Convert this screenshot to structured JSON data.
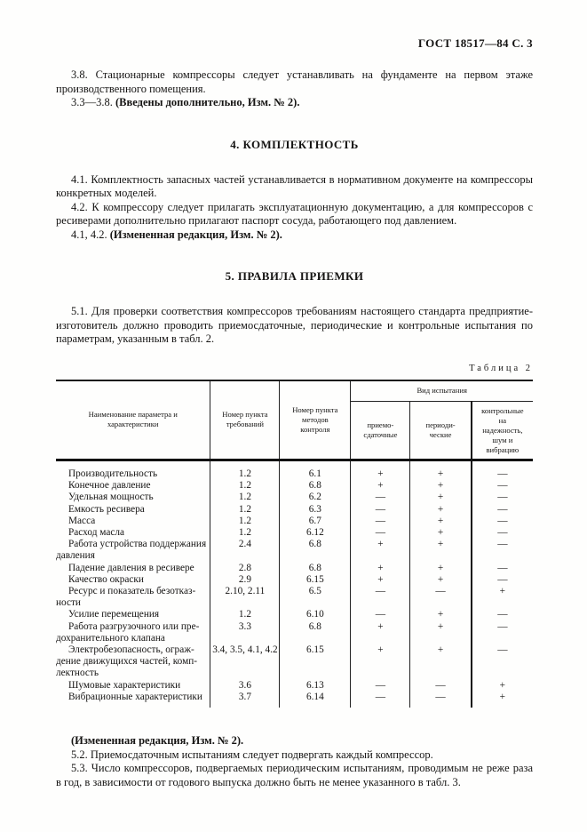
{
  "page": {
    "header_right": "ГОСТ 18517—84 С. 3"
  },
  "sections": {
    "p38": "3.8. Стационарные компрессоры следует устанавливать на фундаменте на первом этаже производственного помещения.",
    "p38_amend_num": "3.3—3.8.",
    "p38_amend_bold": "(Введены дополнительно, Изм. № 2).",
    "h4": "4. КОМПЛЕКТНОСТЬ",
    "p41": "4.1. Комплектность запасных частей устанавливается в нормативном документе на компрессоры конкретных моделей.",
    "p42": "4.2. К компрессору следует прилагать эксплуатационную документацию, а для компрессоров с ресиверами дополнительно прилагают паспорт сосуда, работающего под давлением.",
    "p42_amend_num": "4.1, 4.2.",
    "p42_amend_bold": "(Измененная редакция, Изм. № 2).",
    "h5": "5. ПРАВИЛА ПРИЕМКИ",
    "p51": "5.1. Для проверки соответствия компрессоров требованиям настоящего стандарта предприятие-изготовитель должно проводить приемосдаточные, периодические и контрольные испытания по параметрам, указанным в табл. 2.",
    "after_table_amend": "(Измененная редакция, Изм. № 2).",
    "p52": "5.2. Приемосдаточным испытаниям следует подвергать каждый компрессор.",
    "p53": "5.3. Число компрессоров, подвергаемых периодическим испытаниям, проводимым не реже раза в год, в зависимости от годового выпуска должно быть не менее указанного в табл. 3."
  },
  "table": {
    "caption": "Таблица 2",
    "headers": {
      "name": "Наименование параметра и\nхарактеристики",
      "req": "Номер пункта\nтребований",
      "method": "Номер пункта\nметодов\nконтроля",
      "test_type": "Вид испытания",
      "accept": "приемо-\nсдаточные",
      "periodic": "периоди-\nческие",
      "control": "контрольные\nна\nнадежность,\nшум и\nвибрацию"
    },
    "rows": [
      {
        "name": "Производительность",
        "req": "1.2",
        "method": "6.1",
        "accept": "+",
        "periodic": "+",
        "control": "—"
      },
      {
        "name": "Конечное давление",
        "req": "1.2",
        "method": "6.8",
        "accept": "+",
        "periodic": "+",
        "control": "—"
      },
      {
        "name": "Удельная мощность",
        "req": "1.2",
        "method": "6.2",
        "accept": "—",
        "periodic": "+",
        "control": "—"
      },
      {
        "name": "Емкость ресивера",
        "req": "1.2",
        "method": "6.3",
        "accept": "—",
        "periodic": "+",
        "control": "—"
      },
      {
        "name": "Масса",
        "req": "1.2",
        "method": "6.7",
        "accept": "—",
        "periodic": "+",
        "control": "—"
      },
      {
        "name": "Расход масла",
        "req": "1.2",
        "method": "6.12",
        "accept": "—",
        "periodic": "+",
        "control": "—"
      },
      {
        "name": "Работа устройства поддержания\nдавления",
        "req": "2.4",
        "method": "6.8",
        "accept": "+",
        "periodic": "+",
        "control": "—"
      },
      {
        "name": "Падение давления в ресивере",
        "req": "2.8",
        "method": "6.8",
        "accept": "+",
        "periodic": "+",
        "control": "—"
      },
      {
        "name": "Качество окраски",
        "req": "2.9",
        "method": "6.15",
        "accept": "+",
        "periodic": "+",
        "control": "—"
      },
      {
        "name": "Ресурс и показатель безотказ-\nности",
        "req": "2.10, 2.11",
        "method": "6.5",
        "accept": "—",
        "periodic": "—",
        "control": "+",
        "values_line": 2
      },
      {
        "name": "Усилие перемещения",
        "req": "1.2",
        "method": "6.10",
        "accept": "—",
        "periodic": "+",
        "control": "—"
      },
      {
        "name": "Работа разгрузочного или пре-\nдохранительного клапана",
        "req": "3.3",
        "method": "6.8",
        "accept": "+",
        "periodic": "+",
        "control": "—"
      },
      {
        "name": "Электробезопасность, ограж-\nдение движущихся частей, комп-\nлектность",
        "req": "3.4, 3.5, 4.1, 4.2",
        "method": "6.15",
        "accept": "+",
        "periodic": "+",
        "control": "—"
      },
      {
        "name": "Шумовые характеристики",
        "req": "3.6",
        "method": "6.13",
        "accept": "—",
        "periodic": "—",
        "control": "+"
      },
      {
        "name": "Вибрационные характеристики",
        "req": "3.7",
        "method": "6.14",
        "accept": "—",
        "periodic": "—",
        "control": "+"
      }
    ]
  }
}
